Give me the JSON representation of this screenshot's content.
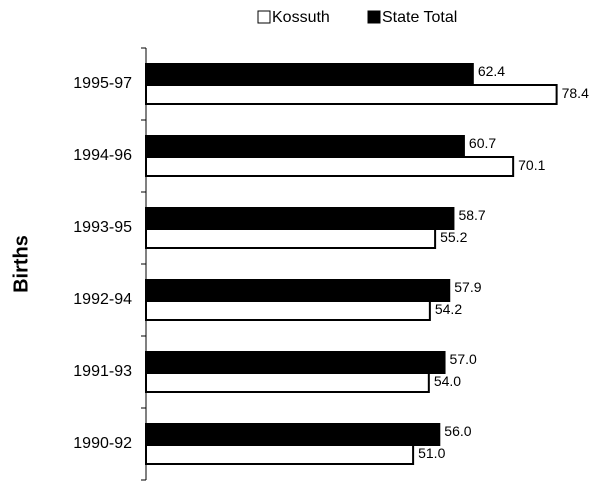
{
  "chart_data": {
    "type": "hbar",
    "y_label": "Births",
    "categories": [
      "1995-97",
      "1994-96",
      "1993-95",
      "1992-94",
      "1991-93",
      "1990-92"
    ],
    "series": [
      {
        "name": "Kossuth",
        "color": "#ffffff",
        "values": [
          78.4,
          70.1,
          55.2,
          54.2,
          54.0,
          51.0
        ],
        "value_labels": [
          "78.4",
          "70.1",
          "55.2",
          "54.2",
          "54.0",
          "51.0"
        ]
      },
      {
        "name": "State Total",
        "color": "#000000",
        "values": [
          62.4,
          60.7,
          58.7,
          57.9,
          57.0,
          56.0
        ],
        "value_labels": [
          "62.4",
          "60.7",
          "58.7",
          "57.9",
          "57.0",
          "56.0"
        ]
      }
    ],
    "xlim": [
      0,
      80
    ],
    "legend": "top"
  }
}
